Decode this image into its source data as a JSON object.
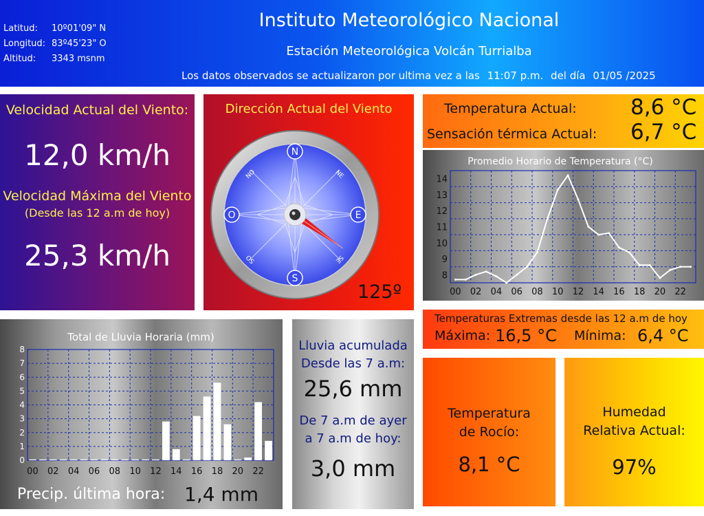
{
  "header": {
    "coords": [
      {
        "label": "Latitud:",
        "value": "10º01'09\" N"
      },
      {
        "label": "Longitud:",
        "value": "83º45'23\" O"
      },
      {
        "label": "Altitud:",
        "value": "3343 msnm"
      }
    ],
    "title": "Instituto Meteorológico Nacional",
    "station": "Estación Meteorológica Volcán Turrialba",
    "update_prefix": "Los datos observados se actualizaron por ultima vez a las",
    "update_time": "11:07 p.m.",
    "update_mid": "del día",
    "update_date": "01/05 /2025"
  },
  "wind": {
    "current_label": "Velocidad Actual del Viento:",
    "current_value": "12,0 km/h",
    "max_label": "Velocidad Máxima del Viento",
    "max_sub": "(Desde las 12 a.m de hoy)",
    "max_value": "25,3 km/h",
    "direction_label": "Dirección Actual del Viento",
    "direction_value": "125º",
    "direction_degrees": 125,
    "compass": {
      "n": "N",
      "e": "E",
      "s": "S",
      "w": "O",
      "ne": "NE",
      "no": "NO",
      "se": "SE",
      "so": "SO"
    }
  },
  "temperature": {
    "current_label": "Temperatura Actual:",
    "current_value": "8,6 °C",
    "feels_label": "Sensación térmica Actual:",
    "feels_value": "6,7 °C",
    "extremes_label": "Temperaturas Extremas desde las 12 a.m de hoy",
    "max_label": "Máxima:",
    "max_value": "16,5 °C",
    "min_label": "Mínima:",
    "min_value": "6,4 °C"
  },
  "dew": {
    "label_line1": "Temperatura",
    "label_line2": "de Rocío:",
    "value": "8,1 °C"
  },
  "humidity": {
    "label_line1": "Humedad",
    "label_line2": "Relativa Actual:",
    "value": "97%"
  },
  "rain": {
    "acc_label_line1": "Lluvia acumulada",
    "acc_label_line2": "Desde las 7 a.m:",
    "acc_value": "25,6 mm",
    "prev_label_line1": "De 7 a.m de ayer",
    "prev_label_line2": "a 7 a.m de hoy:",
    "prev_value": "3,0 mm",
    "last_hour_label": "Precip. última hora:",
    "last_hour_value": "1,4 mm"
  },
  "chart_data": [
    {
      "type": "line",
      "title": "Promedio Horario de Temperatura (°C)",
      "x": [
        0,
        1,
        2,
        3,
        4,
        5,
        6,
        7,
        8,
        9,
        10,
        11,
        12,
        13,
        14,
        15,
        16,
        17,
        18,
        19,
        20,
        21,
        22,
        23
      ],
      "x_tick_labels": [
        "00",
        "02",
        "04",
        "06",
        "08",
        "10",
        "12",
        "14",
        "16",
        "18",
        "20",
        "22"
      ],
      "series": [
        {
          "values": [
            7.7,
            7.7,
            8.0,
            8.2,
            7.9,
            7.5,
            8.0,
            8.5,
            9.4,
            11.5,
            13.3,
            14.2,
            12.7,
            11.0,
            10.5,
            10.6,
            9.7,
            9.4,
            8.6,
            8.6,
            7.8,
            8.3,
            8.5,
            8.5
          ]
        }
      ],
      "ylim": [
        7.5,
        14.5
      ],
      "y_ticks": [
        8,
        9,
        10,
        11,
        12,
        13,
        14
      ],
      "grid": true,
      "line_color": "#ffffff"
    },
    {
      "type": "bar",
      "title": "Total de Lluvia Horaria (mm)",
      "x": [
        0,
        1,
        2,
        3,
        4,
        5,
        6,
        7,
        8,
        9,
        10,
        11,
        12,
        13,
        14,
        15,
        16,
        17,
        18,
        19,
        20,
        21,
        22,
        23
      ],
      "x_tick_labels": [
        "00",
        "02",
        "04",
        "06",
        "08",
        "10",
        "12",
        "14",
        "16",
        "18",
        "20",
        "22"
      ],
      "values": [
        0,
        0,
        0,
        0,
        0,
        0,
        0,
        0,
        0,
        0,
        0,
        0,
        0,
        2.8,
        0.8,
        0,
        3.2,
        4.6,
        5.6,
        2.6,
        0,
        0.2,
        4.2,
        1.4
      ],
      "ylim": [
        0,
        8
      ],
      "y_ticks": [
        0,
        1,
        2,
        3,
        4,
        5,
        6,
        7,
        8
      ],
      "grid": true,
      "bar_color": "#ffffff"
    }
  ]
}
